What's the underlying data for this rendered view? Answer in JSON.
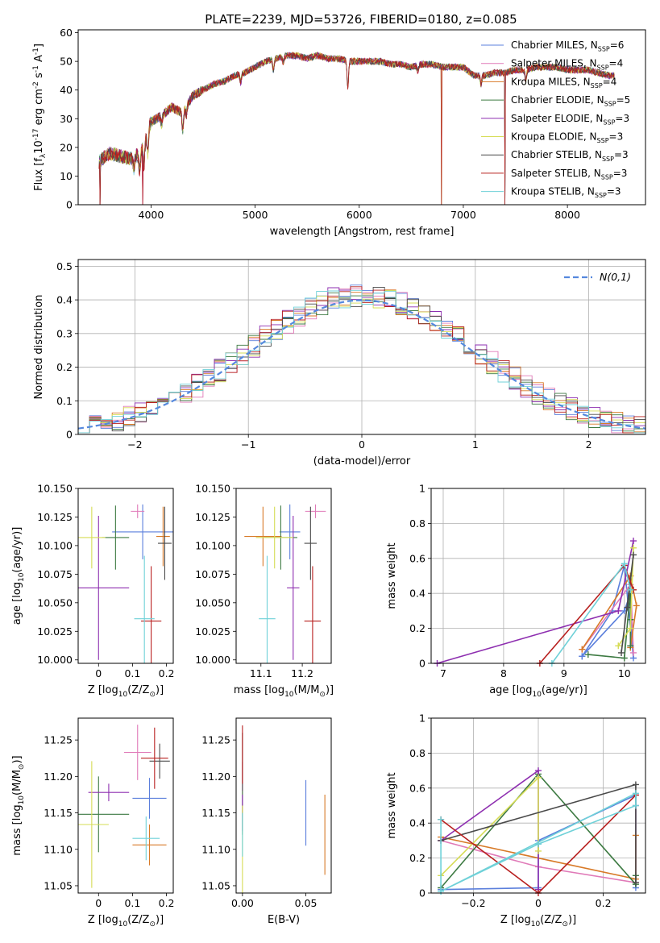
{
  "title": "PLATE=2239, MJD=53726, FIBERID=0180, z=0.085",
  "colors": {
    "chabrier_miles": "#5b7fdc",
    "salpeter_miles": "#e07ab8",
    "kroupa_miles": "#d87a28",
    "chabrier_elodie": "#3d7a42",
    "salpeter_elodie": "#8e2fb0",
    "kroupa_elodie": "#d6dc55",
    "chabrier_stelib": "#4a4a4a",
    "salpeter_stelib": "#b8201f",
    "kroupa_stelib": "#6fd1d8",
    "normal": "#5588dd"
  },
  "chart_data": [
    {
      "id": "spectrum",
      "type": "line",
      "xlabel": "wavelength [Angstrom, rest frame]",
      "ylabel": "Flux [f$_\\lambda$10$^{-17}$ erg cm$^{-2}$ s$^{-1}$ A$^{-1}$]",
      "xlim": [
        3300,
        8750
      ],
      "ylim": [
        0,
        61
      ],
      "xticks": [
        4000,
        5000,
        6000,
        7000,
        8000
      ],
      "yticks": [
        0,
        10,
        20,
        30,
        40,
        50,
        60
      ],
      "legend_position": "top-right",
      "legend": [
        "Chabrier MILES, N$_{SSP}$=6",
        "Salpeter MILES, N$_{SSP}$=4",
        "Kroupa MILES, N$_{SSP}$=4",
        "Chabrier ELODIE, N$_{SSP}$=5",
        "Salpeter ELODIE, N$_{SSP}$=3",
        "Kroupa ELODIE, N$_{SSP}$=3",
        "Chabrier STELIB, N$_{SSP}$=3",
        "Salpeter STELIB, N$_{SSP}$=3",
        "Kroupa STELIB, N$_{SSP}$=3"
      ],
      "continuum": {
        "x": [
          3500,
          3600,
          3700,
          3800,
          3900,
          4000,
          4100,
          4200,
          4300,
          4400,
          4500,
          4600,
          4700,
          4800,
          4900,
          5000,
          5100,
          5200,
          5300,
          5400,
          5500,
          5600,
          5700,
          5800,
          5900,
          6000,
          6100,
          6200,
          6300,
          6400,
          6500,
          6600,
          6700,
          6800,
          6900,
          7000,
          7100,
          7200,
          7300,
          7400,
          7500,
          7600,
          7700,
          7800,
          7900,
          8000,
          8100,
          8200,
          8300,
          8400
        ],
        "y": [
          15,
          18,
          17,
          16,
          18,
          29,
          31,
          34,
          32,
          38,
          40,
          42,
          43,
          45,
          46,
          48,
          50,
          51,
          52,
          52,
          51,
          52,
          51,
          51,
          50,
          50,
          50,
          50,
          49,
          49,
          48,
          49,
          49,
          48,
          48,
          48,
          45,
          45,
          46,
          46,
          47,
          47,
          48,
          48,
          48,
          47,
          47,
          47,
          46,
          45
        ]
      },
      "drop_wavelengths": [
        3510,
        3920,
        6790,
        7400
      ]
    },
    {
      "id": "residuals",
      "type": "line",
      "xlabel": "(data-model)/error",
      "ylabel": "Normed distribution",
      "xlim": [
        -2.5,
        2.5
      ],
      "ylim": [
        0,
        0.52
      ],
      "xticks": [
        -2,
        -1,
        0,
        1,
        2
      ],
      "yticks": [
        0.0,
        0.1,
        0.2,
        0.3,
        0.4,
        0.5
      ],
      "grid": true,
      "legend_position": "top-right",
      "legend": [
        "$\\mathcal{N}(0,1)$"
      ],
      "bin_width": 0.1,
      "bin_range": [
        -2.5,
        2.5
      ],
      "series_count": 9
    },
    {
      "id": "age_vs_z",
      "type": "scatter",
      "xlabel": "Z [log$_{10}$(Z/Z$_\\odot$)]",
      "ylabel": "age  [log$_{10}$(age/yr)]",
      "xlim": [
        -0.06,
        0.22
      ],
      "ylim": [
        9.997,
        10.15
      ],
      "xticks": [
        0.0,
        0.1,
        0.2
      ],
      "yticks": [
        "10.000",
        "10.025",
        "10.050",
        "10.075",
        "10.100",
        "10.125",
        "10.150"
      ],
      "points": [
        {
          "x": 0.13,
          "y": 10.112,
          "xerr": 0.09,
          "yerr": 0.024
        },
        {
          "x": 0.115,
          "y": 10.13,
          "xerr": 0.02,
          "yerr": 0.006
        },
        {
          "x": 0.19,
          "y": 10.108,
          "xerr": 0.02,
          "yerr": 0.026
        },
        {
          "x": 0.05,
          "y": 10.107,
          "xerr": 0.04,
          "yerr": 0.028
        },
        {
          "x": 0.0,
          "y": 10.063,
          "xerr": 0.09,
          "yerr": 0.063
        },
        {
          "x": -0.02,
          "y": 10.107,
          "xerr": 0.04,
          "yerr": 0.027
        },
        {
          "x": 0.195,
          "y": 10.102,
          "xerr": 0.02,
          "yerr": 0.032
        },
        {
          "x": 0.155,
          "y": 10.034,
          "xerr": 0.03,
          "yerr": 0.048
        },
        {
          "x": 0.135,
          "y": 10.036,
          "xerr": 0.03,
          "yerr": 0.055
        }
      ]
    },
    {
      "id": "age_vs_mass",
      "type": "scatter",
      "xlabel": "mass [log$_{10}$(M/M$_\\odot$)]",
      "xlim": [
        11.04,
        11.27
      ],
      "ylim": [
        9.997,
        10.15
      ],
      "xticks": [
        11.1,
        11.2
      ],
      "yticks": [
        "10.000",
        "10.025",
        "10.050",
        "10.075",
        "10.100",
        "10.125",
        "10.150"
      ],
      "points": [
        {
          "x": 11.17,
          "y": 10.112,
          "xerr": 0.025,
          "yerr": 0.024
        },
        {
          "x": 11.232,
          "y": 10.13,
          "xerr": 0.025,
          "yerr": 0.006
        },
        {
          "x": 11.105,
          "y": 10.108,
          "xerr": 0.045,
          "yerr": 0.026
        },
        {
          "x": 11.148,
          "y": 10.107,
          "xerr": 0.04,
          "yerr": 0.028
        },
        {
          "x": 11.178,
          "y": 10.063,
          "xerr": 0.015,
          "yerr": 0.063
        },
        {
          "x": 11.133,
          "y": 10.107,
          "xerr": 0.045,
          "yerr": 0.027
        },
        {
          "x": 11.22,
          "y": 10.102,
          "xerr": 0.015,
          "yerr": 0.032
        },
        {
          "x": 11.225,
          "y": 10.034,
          "xerr": 0.02,
          "yerr": 0.048
        },
        {
          "x": 11.115,
          "y": 10.036,
          "xerr": 0.02,
          "yerr": 0.055
        }
      ]
    },
    {
      "id": "weight_vs_age",
      "type": "line",
      "xlabel": "age  [log$_{10}$(age/yr)]",
      "ylabel": "mass weight",
      "xlim": [
        6.8,
        10.35
      ],
      "ylim": [
        0,
        1.0
      ],
      "xticks": [
        7,
        8,
        9,
        10
      ],
      "yticks": [
        0.0,
        0.2,
        0.4,
        0.6,
        0.8,
        1.0
      ],
      "grid": true,
      "series": [
        {
          "key": "chabrier_miles",
          "x": [
            9.3,
            10.0,
            10.1,
            10.15,
            10.0,
            9.8,
            9.3
          ],
          "y": [
            0.04,
            0.3,
            0.4,
            0.03,
            0.56,
            0.3,
            0.04
          ]
        },
        {
          "key": "salpeter_miles",
          "x": [
            9.3,
            10.1,
            10.15,
            10.1
          ],
          "y": [
            0.08,
            0.45,
            0.06,
            0.5
          ]
        },
        {
          "key": "kroupa_miles",
          "x": [
            9.3,
            10.1,
            10.2,
            10.1
          ],
          "y": [
            0.08,
            0.5,
            0.33,
            0.09
          ]
        },
        {
          "key": "chabrier_elodie",
          "x": [
            9.4,
            10.0,
            10.1,
            10.1,
            10.1
          ],
          "y": [
            0.05,
            0.03,
            0.42,
            0.1,
            0.25
          ]
        },
        {
          "key": "salpeter_elodie",
          "x": [
            6.9,
            9.9,
            10.15
          ],
          "y": [
            0.0,
            0.3,
            0.7
          ]
        },
        {
          "key": "kroupa_elodie",
          "x": [
            9.9,
            10.1,
            10.15
          ],
          "y": [
            0.1,
            0.2,
            0.66
          ]
        },
        {
          "key": "chabrier_stelib",
          "x": [
            9.95,
            10.15,
            10.05
          ],
          "y": [
            0.06,
            0.62,
            0.32
          ]
        },
        {
          "key": "salpeter_stelib",
          "x": [
            8.6,
            10.0,
            10.15
          ],
          "y": [
            0.0,
            0.56,
            0.42
          ]
        },
        {
          "key": "kroupa_stelib",
          "x": [
            8.8,
            10.0,
            10.1
          ],
          "y": [
            0.0,
            0.57,
            0.42
          ]
        }
      ]
    },
    {
      "id": "mass_vs_z",
      "type": "scatter",
      "xlabel": "Z [log$_{10}$(Z/Z$_\\odot$)]",
      "ylabel": "mass [log$_{10}$(M/M$_\\odot$)]",
      "xlim": [
        -0.06,
        0.22
      ],
      "ylim": [
        11.04,
        11.28
      ],
      "xticks": [
        0.0,
        0.1,
        0.2
      ],
      "yticks": [
        "11.05",
        "11.10",
        "11.15",
        "11.20",
        "11.25"
      ],
      "points": [
        {
          "x": 0.15,
          "y": 11.17,
          "xerr": 0.05,
          "yerr": 0.028
        },
        {
          "x": 0.115,
          "y": 11.233,
          "xerr": 0.04,
          "yerr": 0.038
        },
        {
          "x": 0.15,
          "y": 11.106,
          "xerr": 0.05,
          "yerr": 0.028
        },
        {
          "x": 0.0,
          "y": 11.148,
          "xerr": 0.09,
          "yerr": 0.052
        },
        {
          "x": 0.03,
          "y": 11.178,
          "xerr": 0.06,
          "yerr": 0.012
        },
        {
          "x": -0.02,
          "y": 11.134,
          "xerr": 0.05,
          "yerr": 0.087
        },
        {
          "x": 0.18,
          "y": 11.221,
          "xerr": 0.03,
          "yerr": 0.024
        },
        {
          "x": 0.165,
          "y": 11.225,
          "xerr": 0.04,
          "yerr": 0.042
        },
        {
          "x": 0.14,
          "y": 11.115,
          "xerr": 0.04,
          "yerr": 0.03
        }
      ]
    },
    {
      "id": "mass_vs_ebv",
      "type": "scatter",
      "xlabel": "E(B-V)",
      "xlim": [
        -0.005,
        0.07
      ],
      "ylim": [
        11.04,
        11.28
      ],
      "xticks": [
        "0.00",
        "0.05"
      ],
      "yticks": [
        "11.05",
        "11.10",
        "11.15",
        "11.20",
        "11.25"
      ],
      "points": [
        {
          "x": 0.05,
          "y": 11.15,
          "yerr": 0.045
        },
        {
          "x": 0.0,
          "y": 11.19,
          "yerr": 0.03
        },
        {
          "x": 0.065,
          "y": 11.12,
          "yerr": 0.055
        },
        {
          "x": 0.0,
          "y": 11.15,
          "yerr": 0.03
        },
        {
          "x": 0.0,
          "y": 11.15,
          "yerr": 0.025
        },
        {
          "x": 0.0,
          "y": 11.1,
          "yerr": 0.06
        },
        {
          "x": 0.0,
          "y": 11.22,
          "yerr": 0.04
        },
        {
          "x": 0.0,
          "y": 11.23,
          "yerr": 0.04
        },
        {
          "x": 0.0,
          "y": 11.12,
          "yerr": 0.03
        }
      ]
    },
    {
      "id": "weight_vs_z",
      "type": "line",
      "xlabel": "Z [log$_{10}$(Z/Z$_\\odot$)]",
      "ylabel": "mass weight",
      "xlim": [
        -0.33,
        0.33
      ],
      "ylim": [
        0,
        1.0
      ],
      "xticks": [
        -0.2,
        0.0,
        0.2
      ],
      "yticks": [
        0.0,
        0.2,
        0.4,
        0.6,
        0.8,
        1.0
      ],
      "grid": true,
      "series": [
        {
          "key": "chabrier_miles",
          "x": [
            -0.3,
            0.0,
            0.0,
            0.3,
            0.3
          ],
          "y": [
            0.02,
            0.03,
            0.3,
            0.56,
            0.03
          ]
        },
        {
          "key": "salpeter_miles",
          "x": [
            -0.3,
            0.0,
            0.3,
            0.3
          ],
          "y": [
            0.3,
            0.15,
            0.06,
            0.5
          ]
        },
        {
          "key": "kroupa_miles",
          "x": [
            -0.3,
            0.3,
            0.3
          ],
          "y": [
            0.32,
            0.08,
            0.33
          ]
        },
        {
          "key": "chabrier_elodie",
          "x": [
            -0.3,
            0.0,
            0.3,
            0.3
          ],
          "y": [
            0.03,
            0.68,
            0.05,
            0.1
          ]
        },
        {
          "key": "salpeter_elodie",
          "x": [
            -0.3,
            0.0,
            0.0
          ],
          "y": [
            0.3,
            0.7,
            0.02
          ]
        },
        {
          "key": "kroupa_elodie",
          "x": [
            -0.3,
            0.0,
            0.0
          ],
          "y": [
            0.1,
            0.66,
            0.24
          ]
        },
        {
          "key": "chabrier_stelib",
          "x": [
            -0.3,
            0.3,
            0.3
          ],
          "y": [
            0.3,
            0.62,
            0.06
          ]
        },
        {
          "key": "salpeter_stelib",
          "x": [
            -0.3,
            0.0,
            0.3
          ],
          "y": [
            0.42,
            0.0,
            0.56
          ]
        },
        {
          "key": "kroupa_stelib",
          "x": [
            -0.3,
            -0.3,
            0.3,
            0.3,
            0.0,
            -0.3
          ],
          "y": [
            0.42,
            0.01,
            0.57,
            0.5,
            0.28,
            0.01
          ]
        }
      ]
    }
  ]
}
